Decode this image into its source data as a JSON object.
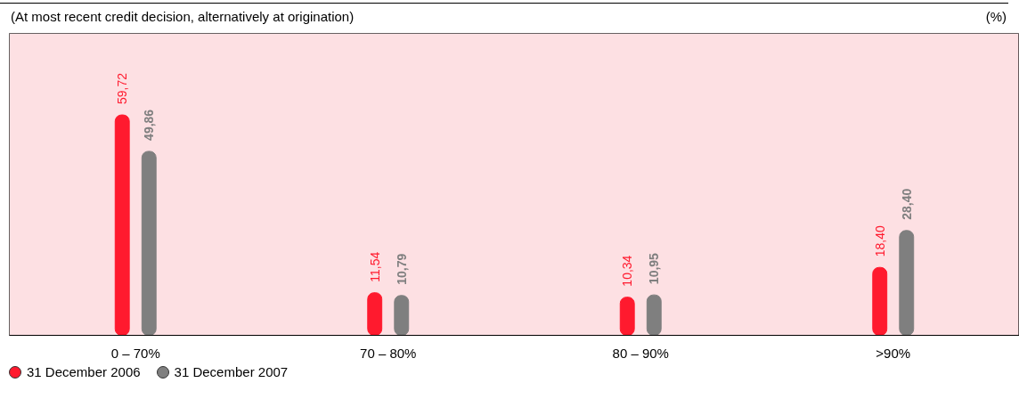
{
  "chart_data": {
    "type": "bar",
    "subtitle": "(At most recent credit decision, alternatively at origination)",
    "annotations": [
      "(%)"
    ],
    "categories": [
      "0 – 70%",
      "70 – 80%",
      "80 – 90%",
      ">90%"
    ],
    "series": [
      {
        "name": "31 December 2006",
        "color": "#ff1a2e",
        "values": [
          59.72,
          11.54,
          10.34,
          18.4
        ],
        "value_labels": [
          "59,72",
          "11,54",
          "10,34",
          "18,40"
        ]
      },
      {
        "name": "31 December 2007",
        "color": "#7f7f7f",
        "values": [
          49.86,
          10.79,
          10.95,
          28.4
        ],
        "value_labels": [
          "49,86",
          "10,79",
          "10,95",
          "28,40"
        ]
      }
    ],
    "grid": false,
    "legend": "bottom left"
  }
}
